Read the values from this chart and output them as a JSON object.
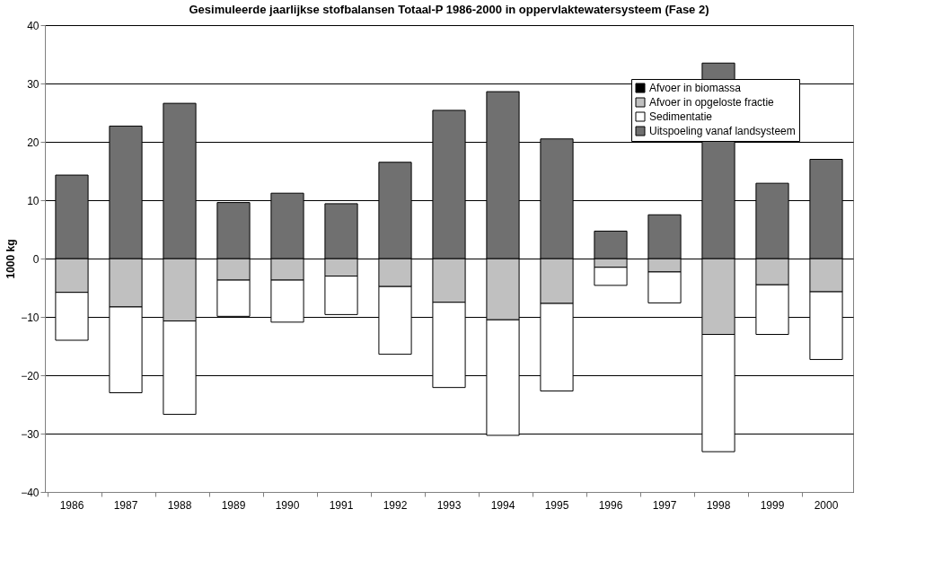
{
  "chart_data": {
    "type": "bar",
    "stacked": true,
    "title": "Gesimuleerde jaarlijkse stofbalansen Totaal-P 1986-2000 in oppervlaktewatersysteem (Fase 2)",
    "ylabel": "1000 kg",
    "categories": [
      "1986",
      "1987",
      "1988",
      "1989",
      "1990",
      "1991",
      "1992",
      "1993",
      "1994",
      "1995",
      "1996",
      "1997",
      "1998",
      "1999",
      "2000"
    ],
    "series": [
      {
        "name": "Afvoer in biomassa",
        "color": "#000000",
        "values": [
          0,
          0,
          0,
          0,
          0,
          0,
          0,
          0,
          0,
          0,
          0,
          0,
          0,
          0,
          0
        ]
      },
      {
        "name": "Afvoer in opgeloste fractie",
        "color": "#c0c0c0",
        "values": [
          -5.8,
          -8.3,
          -10.7,
          -3.7,
          -3.7,
          -3.0,
          -4.8,
          -7.5,
          -10.5,
          -7.7,
          -1.5,
          -2.3,
          -13.0,
          -4.5,
          -5.7
        ]
      },
      {
        "name": "Sedimentatie",
        "color": "#ffffff",
        "values": [
          -8.2,
          -14.7,
          -16.0,
          -6.2,
          -7.2,
          -6.6,
          -11.6,
          -14.6,
          -19.8,
          -15.0,
          -3.1,
          -5.3,
          -20.1,
          -8.5,
          -11.6
        ]
      },
      {
        "name": "Uitspoeling vanaf landsysteem",
        "color": "#707070",
        "values": [
          14.3,
          22.7,
          26.6,
          9.6,
          11.2,
          9.4,
          16.5,
          25.4,
          28.6,
          20.5,
          4.7,
          7.5,
          33.5,
          12.9,
          17.0
        ]
      }
    ],
    "ylim": [
      -40,
      40
    ],
    "yticks": [
      -40,
      -30,
      -20,
      -10,
      0,
      10,
      20,
      30,
      40
    ],
    "grid": "y",
    "legend": "top right"
  }
}
